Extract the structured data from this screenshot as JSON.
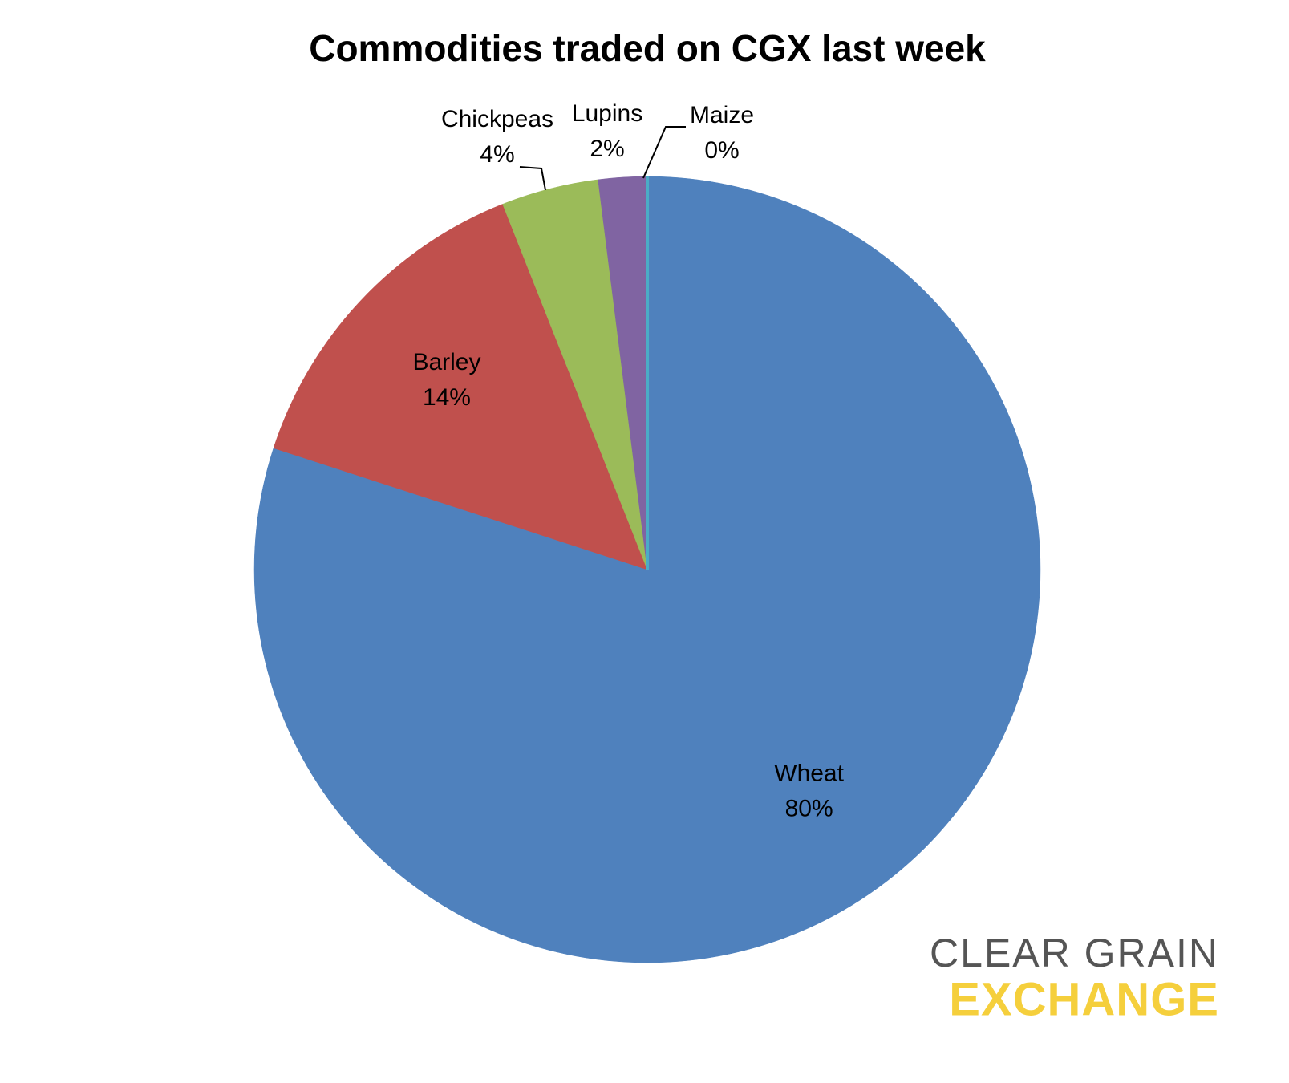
{
  "chart_data": {
    "type": "pie",
    "title": "Commodities traded on CGX last week",
    "categories": [
      "Wheat",
      "Barley",
      "Chickpeas",
      "Lupins",
      "Maize"
    ],
    "values": [
      80,
      14,
      4,
      2,
      0
    ],
    "value_labels": [
      "80%",
      "14%",
      "4%",
      "2%",
      "0%"
    ],
    "colors": [
      "#4f81bd",
      "#c0504d",
      "#9bbb59",
      "#8064a2",
      "#4bacc6"
    ]
  },
  "logo": {
    "line1": "CLEAR GRAIN",
    "line2": "EXCHANGE"
  }
}
